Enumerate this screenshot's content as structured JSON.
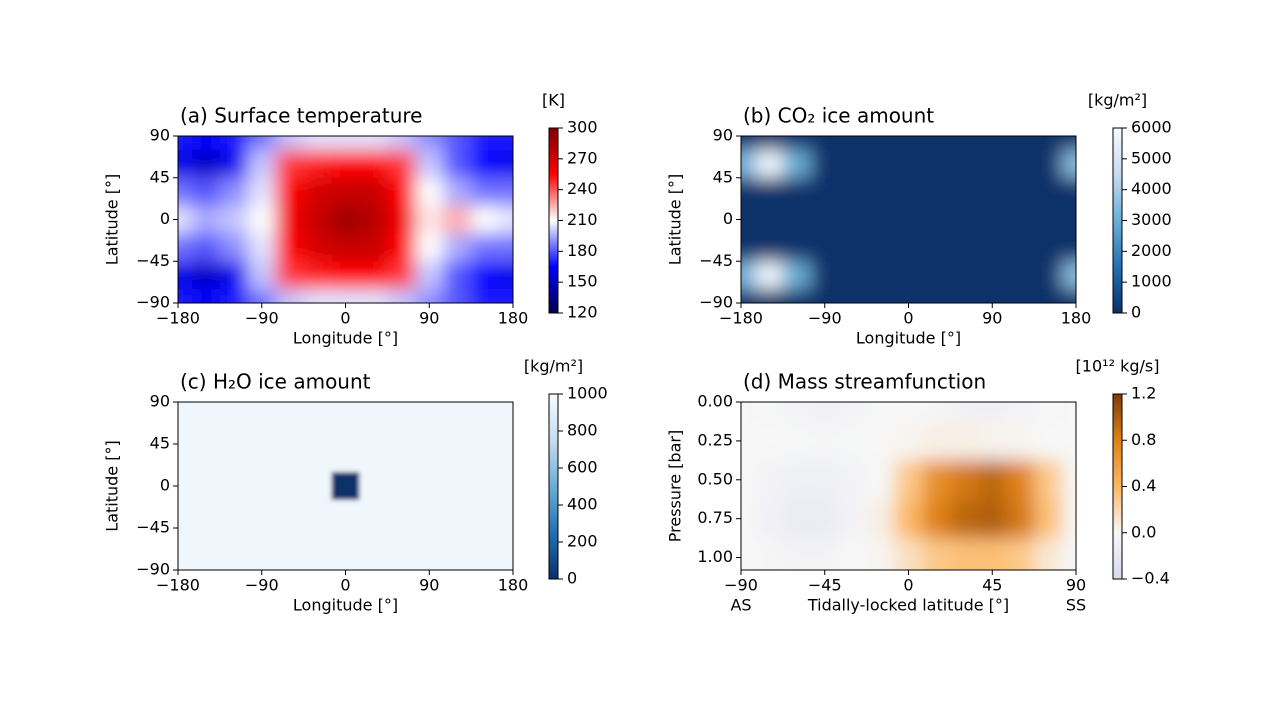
{
  "chart_data": [
    {
      "type": "heatmap",
      "title": "(a) Surface temperature",
      "xlabel": "Longitude [°]",
      "ylabel": "Latitude [°]",
      "colorbar_label": "[K]",
      "x": [
        -180,
        -150,
        -120,
        -90,
        -60,
        -30,
        0,
        30,
        60,
        90,
        120,
        150,
        180
      ],
      "y": [
        90,
        60,
        30,
        0,
        -30,
        -60,
        -90
      ],
      "z": [
        [
          170,
          165,
          170,
          185,
          200,
          205,
          205,
          205,
          200,
          190,
          180,
          170,
          170
        ],
        [
          160,
          150,
          160,
          200,
          245,
          250,
          255,
          255,
          245,
          200,
          180,
          165,
          160
        ],
        [
          185,
          180,
          190,
          205,
          255,
          270,
          275,
          275,
          255,
          210,
          195,
          185,
          185
        ],
        [
          205,
          195,
          200,
          210,
          260,
          275,
          290,
          280,
          260,
          215,
          225,
          210,
          205
        ],
        [
          185,
          180,
          190,
          205,
          255,
          270,
          275,
          275,
          255,
          210,
          195,
          185,
          185
        ],
        [
          160,
          150,
          160,
          200,
          245,
          250,
          255,
          255,
          245,
          200,
          180,
          165,
          160
        ],
        [
          170,
          165,
          170,
          185,
          200,
          205,
          205,
          205,
          200,
          190,
          180,
          170,
          170
        ]
      ],
      "colormap": [
        "#00004c",
        "#0000ff",
        "#ffffff",
        "#ff0000",
        "#800000"
      ],
      "clim": [
        120,
        300
      ],
      "cticks": [
        120,
        150,
        180,
        210,
        240,
        270,
        300
      ],
      "xlim": [
        -180,
        180
      ],
      "ylim": [
        -90,
        90
      ],
      "xticks": [
        {
          "value": -180,
          "label": "−180"
        },
        {
          "value": -90,
          "label": "−90"
        },
        0,
        90,
        180
      ],
      "yticks": [
        {
          "value": -90,
          "label": "−90"
        },
        {
          "value": -45,
          "label": "−45"
        },
        0,
        45,
        90
      ]
    },
    {
      "type": "heatmap",
      "title": "(b) CO₂ ice amount",
      "xlabel": "Longitude [°]",
      "ylabel": "Latitude [°]",
      "colorbar_label": "[kg/m²]",
      "x": [
        -180,
        -150,
        -120,
        -90,
        -60,
        -30,
        0,
        30,
        60,
        90,
        120,
        150,
        180
      ],
      "y": [
        90,
        60,
        30,
        0,
        -30,
        -60,
        -90
      ],
      "z": [
        [
          0,
          0,
          0,
          0,
          0,
          0,
          0,
          0,
          0,
          0,
          0,
          0,
          0
        ],
        [
          3000,
          5800,
          3000,
          0,
          0,
          0,
          0,
          0,
          0,
          0,
          0,
          0,
          3500
        ],
        [
          0,
          0,
          0,
          0,
          0,
          0,
          0,
          0,
          0,
          0,
          0,
          0,
          0
        ],
        [
          0,
          0,
          0,
          0,
          0,
          0,
          0,
          0,
          0,
          0,
          0,
          0,
          0
        ],
        [
          0,
          0,
          0,
          0,
          0,
          0,
          0,
          0,
          0,
          0,
          0,
          0,
          0
        ],
        [
          3000,
          5800,
          3000,
          0,
          0,
          0,
          0,
          0,
          0,
          0,
          0,
          0,
          3500
        ],
        [
          0,
          0,
          0,
          0,
          0,
          0,
          0,
          0,
          0,
          0,
          0,
          0,
          0
        ]
      ],
      "colormap": [
        "#08306b",
        "#2171b5",
        "#6baed6",
        "#c6dbef",
        "#f7fbff"
      ],
      "clim": [
        0,
        6000
      ],
      "cticks": [
        0,
        1000,
        2000,
        3000,
        4000,
        5000,
        6000
      ],
      "xlim": [
        -180,
        180
      ],
      "ylim": [
        -90,
        90
      ],
      "xticks": [
        {
          "value": -180,
          "label": "−180"
        },
        {
          "value": -90,
          "label": "−90"
        },
        0,
        90,
        180
      ],
      "yticks": [
        {
          "value": -90,
          "label": "−90"
        },
        {
          "value": -45,
          "label": "−45"
        },
        0,
        45,
        90
      ]
    },
    {
      "type": "heatmap",
      "title": "(c) H₂O ice amount",
      "xlabel": "Longitude [°]",
      "ylabel": "Latitude [°]",
      "colorbar_label": "[kg/m²]",
      "x": [
        -180,
        -150,
        -120,
        -90,
        -60,
        -30,
        0,
        30,
        60,
        90,
        120,
        150,
        180
      ],
      "y": [
        90,
        60,
        30,
        0,
        -30,
        -60,
        -90
      ],
      "z": [
        [
          960,
          960,
          960,
          960,
          960,
          960,
          960,
          960,
          960,
          960,
          960,
          960,
          960
        ],
        [
          960,
          960,
          960,
          960,
          960,
          960,
          960,
          960,
          960,
          960,
          960,
          960,
          960
        ],
        [
          960,
          960,
          960,
          960,
          960,
          960,
          960,
          960,
          960,
          960,
          960,
          960,
          960
        ],
        [
          960,
          960,
          960,
          960,
          960,
          960,
          0,
          960,
          960,
          960,
          960,
          960,
          960
        ],
        [
          960,
          960,
          960,
          960,
          960,
          960,
          960,
          960,
          960,
          960,
          960,
          960,
          960
        ],
        [
          960,
          960,
          960,
          960,
          960,
          960,
          960,
          960,
          960,
          960,
          960,
          960,
          960
        ],
        [
          960,
          960,
          960,
          960,
          960,
          960,
          960,
          960,
          960,
          960,
          960,
          960,
          960
        ]
      ],
      "colormap": [
        "#08306b",
        "#2171b5",
        "#6baed6",
        "#c6dbef",
        "#f7fbff"
      ],
      "clim": [
        0,
        1000
      ],
      "cticks": [
        0,
        200,
        400,
        600,
        800,
        1000
      ],
      "xlim": [
        -180,
        180
      ],
      "ylim": [
        -90,
        90
      ],
      "xticks": [
        {
          "value": -180,
          "label": "−180"
        },
        {
          "value": -90,
          "label": "−90"
        },
        0,
        90,
        180
      ],
      "yticks": [
        {
          "value": -90,
          "label": "−90"
        },
        {
          "value": -45,
          "label": "−45"
        },
        0,
        45,
        90
      ]
    },
    {
      "type": "heatmap",
      "title": "(d) Mass streamfunction",
      "xlabel": "Tidally-locked latitude [°]",
      "ylabel": "Pressure [bar]",
      "colorbar_label": "[10¹² kg/s]",
      "x_end_labels": [
        "AS",
        "SS"
      ],
      "x": [
        -90,
        -75,
        -60,
        -45,
        -30,
        -15,
        0,
        15,
        30,
        45,
        60,
        75,
        90
      ],
      "y": [
        0,
        0.25,
        0.5,
        0.75,
        1
      ],
      "z": [
        [
          0,
          -0.02,
          -0.05,
          -0.08,
          -0.05,
          -0.02,
          0,
          -0.03,
          -0.08,
          -0.1,
          -0.05,
          -0.02,
          0
        ],
        [
          0,
          0,
          -0.02,
          -0.03,
          -0.02,
          0,
          0.02,
          0.05,
          0.05,
          0.03,
          0.02,
          0,
          0
        ],
        [
          0,
          -0.05,
          -0.1,
          -0.1,
          -0.05,
          0,
          0.3,
          0.7,
          0.85,
          0.95,
          0.8,
          0.3,
          0
        ],
        [
          0,
          -0.08,
          -0.15,
          -0.15,
          -0.05,
          0.05,
          0.4,
          0.8,
          0.95,
          1.0,
          0.85,
          0.35,
          0
        ],
        [
          0,
          -0.03,
          -0.05,
          -0.05,
          0,
          0.02,
          0.15,
          0.3,
          0.35,
          0.35,
          0.3,
          0.1,
          0
        ]
      ],
      "colormap": [
        "#d8d9ec",
        "#f7f7f7",
        "#fdb863",
        "#e08214",
        "#7f3b08"
      ],
      "clim": [
        -0.4,
        1.2
      ],
      "cticks": [
        {
          "value": -0.4,
          "label": "−0.4"
        },
        {
          "value": 0,
          "label": "0.0"
        },
        0.4,
        0.8,
        1.2
      ],
      "xlim": [
        -90,
        90
      ],
      "ylim": [
        1.08,
        0
      ],
      "xticks": [
        {
          "value": -90,
          "label": "−90"
        },
        {
          "value": -45,
          "label": "−45"
        },
        0,
        45,
        90
      ],
      "yticks": [
        {
          "value": 0,
          "label": "0.00"
        },
        0.25,
        {
          "value": 0.5,
          "label": "0.50"
        },
        0.75,
        {
          "value": 1,
          "label": "1.00"
        }
      ]
    }
  ]
}
